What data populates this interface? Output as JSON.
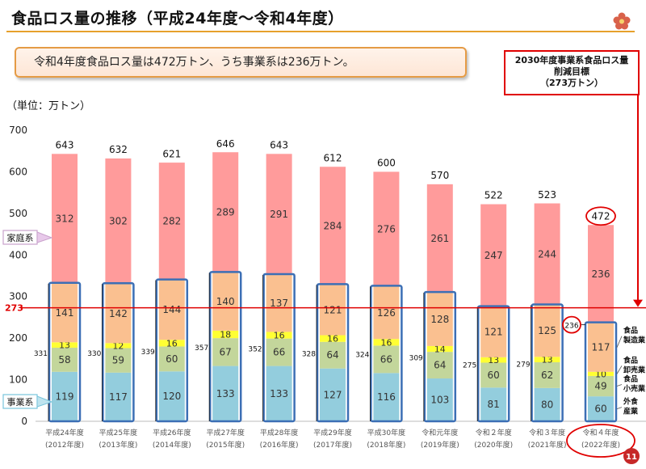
{
  "title": "食品ロス量の推移（平成24年度～令和4年度）",
  "summary": "令和4年度食品ロス量は472万トン、うち事業系は236万トン。",
  "target": {
    "line1": "2030年度事業系食品ロス量",
    "line2": "削減目標",
    "line3": "（273万トン）",
    "value_label": "273",
    "value": 273,
    "color": "#e00000"
  },
  "unit": "（単位：万トン）",
  "category_labels": {
    "household": "家庭系",
    "business": "事業系"
  },
  "business_breakdown_labels": [
    "食品\n製造業",
    "食品\n卸売業",
    "食品\n小売業",
    "外食\n産業"
  ],
  "page_number": "11",
  "colors": {
    "household": "#ff9b9b",
    "restaurant": "#93cddd",
    "retail": "#c3d69b",
    "wholesale": "#ffff33",
    "manufacturing": "#fac090",
    "business_outline": "#3c6fb5",
    "accent_orange": "#e7a12c",
    "highlight_red": "#e00000"
  },
  "chart_data": {
    "type": "bar",
    "stacked": true,
    "categories": [
      [
        "平成24年度",
        "(2012年度)"
      ],
      [
        "平成25年度",
        "(2013年度)"
      ],
      [
        "平成26年度",
        "(2014年度)"
      ],
      [
        "平成27年度",
        "(2015年度)"
      ],
      [
        "平成28年度",
        "(2016年度)"
      ],
      [
        "平成29年度",
        "(2017年度)"
      ],
      [
        "平成30年度",
        "(2018年度)"
      ],
      [
        "令和元年度",
        "(2019年度)"
      ],
      [
        "令和２年度",
        "(2020年度)"
      ],
      [
        "令和３年度",
        "(2021年度)"
      ],
      [
        "令和４年度",
        "(2022年度)"
      ]
    ],
    "series": [
      {
        "name": "外食産業",
        "key": "restaurant",
        "values": [
          119,
          117,
          120,
          133,
          133,
          127,
          116,
          103,
          81,
          80,
          60
        ]
      },
      {
        "name": "食品小売業",
        "key": "retail",
        "values": [
          58,
          59,
          60,
          67,
          66,
          64,
          66,
          64,
          60,
          62,
          49
        ]
      },
      {
        "name": "食品卸売業",
        "key": "wholesale",
        "values": [
          13,
          12,
          16,
          18,
          16,
          16,
          16,
          14,
          13,
          13,
          10
        ]
      },
      {
        "name": "食品製造業",
        "key": "manufacturing",
        "values": [
          141,
          142,
          144,
          140,
          137,
          121,
          126,
          128,
          121,
          125,
          117
        ]
      },
      {
        "name": "家庭系",
        "key": "household",
        "values": [
          312,
          302,
          282,
          289,
          291,
          284,
          276,
          261,
          247,
          244,
          236
        ]
      }
    ],
    "business_totals": [
      331,
      330,
      339,
      357,
      352,
      328,
      324,
      309,
      275,
      279,
      236
    ],
    "totals": [
      643,
      632,
      621,
      646,
      643,
      612,
      600,
      570,
      522,
      523,
      472
    ],
    "ylim": [
      0,
      700
    ],
    "yticks": [
      0,
      100,
      200,
      300,
      400,
      500,
      600,
      700
    ],
    "reference_line": 273,
    "grid": false
  }
}
